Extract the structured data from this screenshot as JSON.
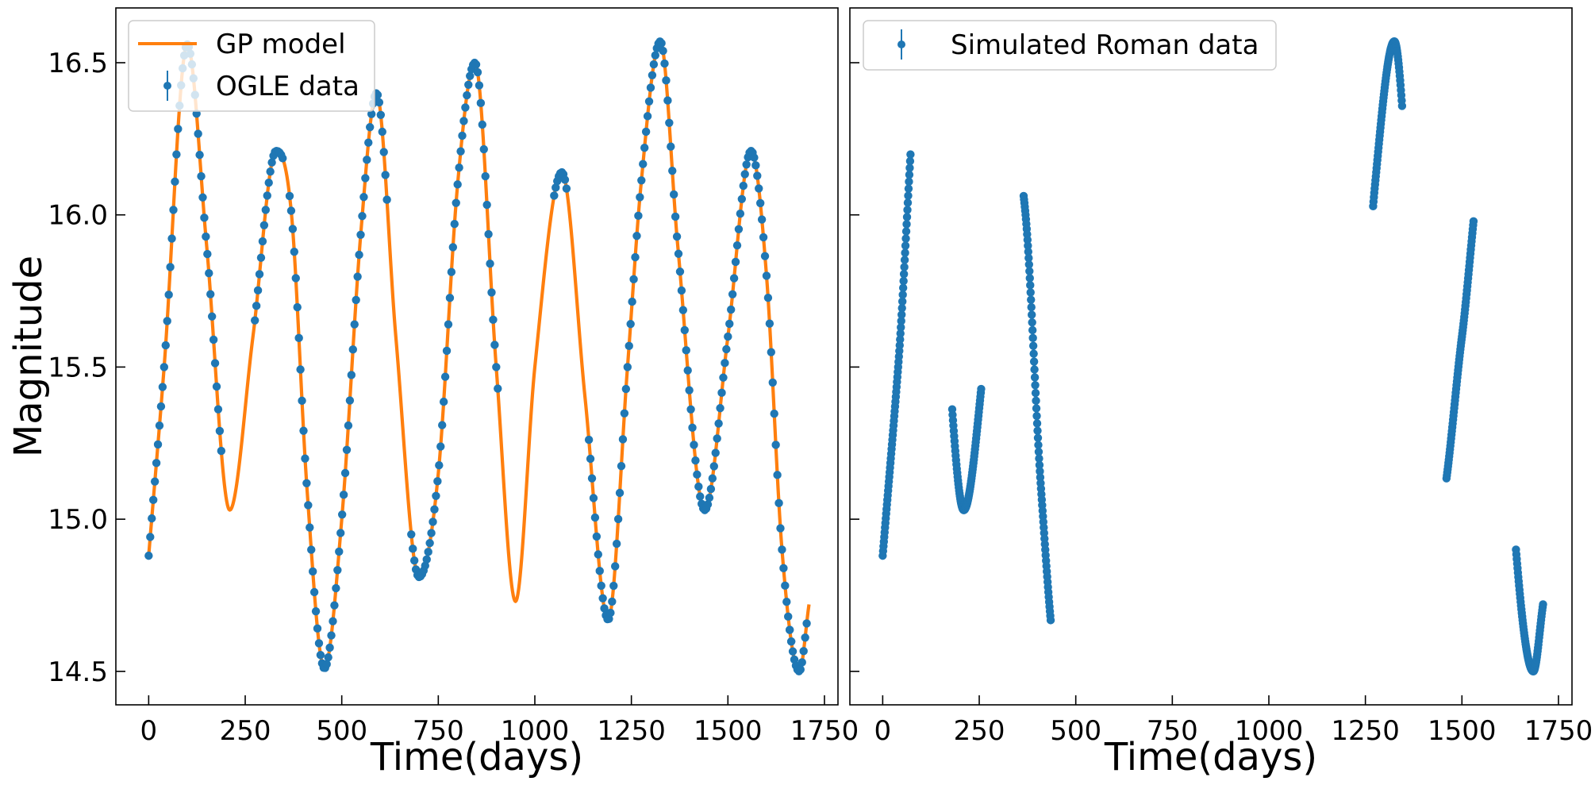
{
  "colors": {
    "gp_model": "#ff7f0e",
    "data_points": "#1f77b4",
    "axes": "#000000",
    "legend_border": "#cccccc"
  },
  "chart_data": [
    {
      "type": "line",
      "panel": "left",
      "title": "",
      "xlabel": "Time(days)",
      "ylabel": "Magnitude",
      "xlim": [
        -85,
        1785
      ],
      "ylim": [
        14.39,
        16.68
      ],
      "y_inverted": false,
      "xticks": [
        0,
        250,
        500,
        750,
        1000,
        1250,
        1500,
        1750
      ],
      "xtick_labels": [
        "0",
        "250",
        "500",
        "750",
        "1000",
        "1250",
        "1500",
        "1750"
      ],
      "yticks": [
        14.5,
        15.0,
        15.5,
        16.0,
        16.5
      ],
      "ytick_labels": [
        "14.5",
        "15.0",
        "15.5",
        "16.0",
        "16.5"
      ],
      "grid": false,
      "legend": {
        "placement": "top-left",
        "entries": [
          "GP model",
          "OGLE data"
        ]
      },
      "series": [
        {
          "name": "GP model",
          "kind": "line",
          "color": "#ff7f0e",
          "x": [
            0,
            40,
            100,
            150,
            210,
            270,
            330,
            370,
            410,
            455,
            500,
            550,
            590,
            640,
            700,
            750,
            800,
            845,
            900,
            950,
            1000,
            1070,
            1130,
            1190,
            1240,
            1275,
            1325,
            1370,
            1440,
            1500,
            1560,
            1600,
            1640,
            1685,
            1710
          ],
          "y": [
            14.88,
            15.5,
            16.56,
            15.9,
            15.03,
            15.6,
            16.21,
            16.0,
            15.1,
            14.51,
            15.0,
            15.95,
            16.4,
            15.6,
            14.81,
            15.15,
            16.1,
            16.5,
            15.5,
            14.73,
            15.5,
            16.14,
            15.4,
            14.67,
            15.5,
            16.1,
            16.57,
            15.9,
            15.03,
            15.6,
            16.21,
            15.8,
            14.9,
            14.5,
            14.72
          ]
        },
        {
          "name": "OGLE data",
          "kind": "points",
          "color": "#1f77b4",
          "segments": [
            [
              0,
              190
            ],
            [
              275,
              350
            ],
            [
              365,
              620
            ],
            [
              680,
              905
            ],
            [
              1050,
              1085
            ],
            [
              1140,
              1665
            ],
            [
              1660,
              1705
            ]
          ]
        }
      ]
    },
    {
      "type": "scatter",
      "panel": "right",
      "title": "",
      "xlabel": "Time(days)",
      "ylabel": "",
      "xlim": [
        -85,
        1785
      ],
      "ylim": [
        14.39,
        16.68
      ],
      "xticks": [
        0,
        250,
        500,
        750,
        1000,
        1250,
        1500,
        1750
      ],
      "xtick_labels": [
        "0",
        "250",
        "500",
        "750",
        "1000",
        "1250",
        "1500",
        "1750"
      ],
      "yticks": [
        14.5,
        15.0,
        15.5,
        16.0,
        16.5
      ],
      "ytick_labels": [],
      "grid": false,
      "legend": {
        "placement": "top-left",
        "entries": [
          "Simulated Roman data"
        ]
      },
      "series": [
        {
          "name": "Simulated Roman data",
          "kind": "points",
          "color": "#1f77b4",
          "segments": [
            [
              0,
              72
            ],
            [
              180,
              255
            ],
            [
              365,
              435
            ],
            [
              1270,
              1345
            ],
            [
              1460,
              1530
            ],
            [
              1640,
              1710
            ]
          ]
        }
      ]
    }
  ]
}
